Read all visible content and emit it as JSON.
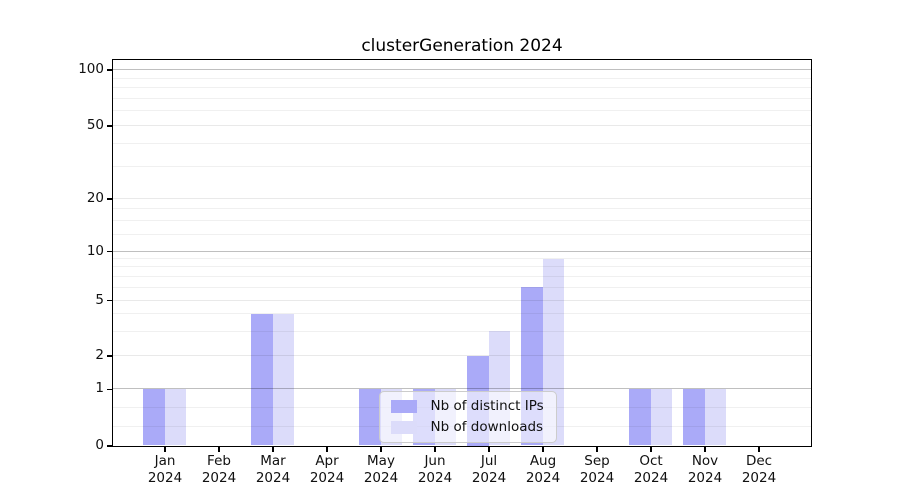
{
  "chart_data": {
    "type": "bar",
    "title": "clusterGeneration 2024",
    "categories": [
      "Jan 2024",
      "Feb 2024",
      "Mar 2024",
      "Apr 2024",
      "May 2024",
      "Jun 2024",
      "Jul 2024",
      "Aug 2024",
      "Sep 2024",
      "Oct 2024",
      "Nov 2024",
      "Dec 2024"
    ],
    "series": [
      {
        "name": "Nb of distinct IPs",
        "color": "#aaaaf8",
        "values": [
          1,
          0,
          4,
          0,
          1,
          1,
          2,
          6,
          0,
          1,
          1,
          0
        ]
      },
      {
        "name": "Nb of downloads",
        "color": "#dcdcfa",
        "values": [
          1,
          0,
          4,
          0,
          1,
          1,
          3,
          9,
          0,
          1,
          1,
          0
        ]
      }
    ],
    "xlabel": "",
    "ylabel": "",
    "ylim": [
      0,
      110
    ],
    "yscale": "log-like",
    "y_ticks": [
      100,
      50,
      20,
      10,
      5,
      2,
      1,
      0
    ],
    "y_major_gridlines": [
      1,
      10,
      100
    ],
    "y_labeled_gridlines": [
      2,
      5,
      20,
      50
    ],
    "y_minor_gridlines": [
      0.333,
      0.667,
      3,
      4,
      6,
      7,
      8,
      9,
      12.5,
      15,
      17.5,
      30,
      40,
      60,
      70,
      80,
      90
    ],
    "grid": true,
    "legend_position": "inside-bottom-center",
    "colors": {
      "background": "#ffffff",
      "axis": "#000000",
      "major_grid": "#bfbfbf",
      "minor_grid": "#efefef",
      "text": "#111111"
    }
  }
}
